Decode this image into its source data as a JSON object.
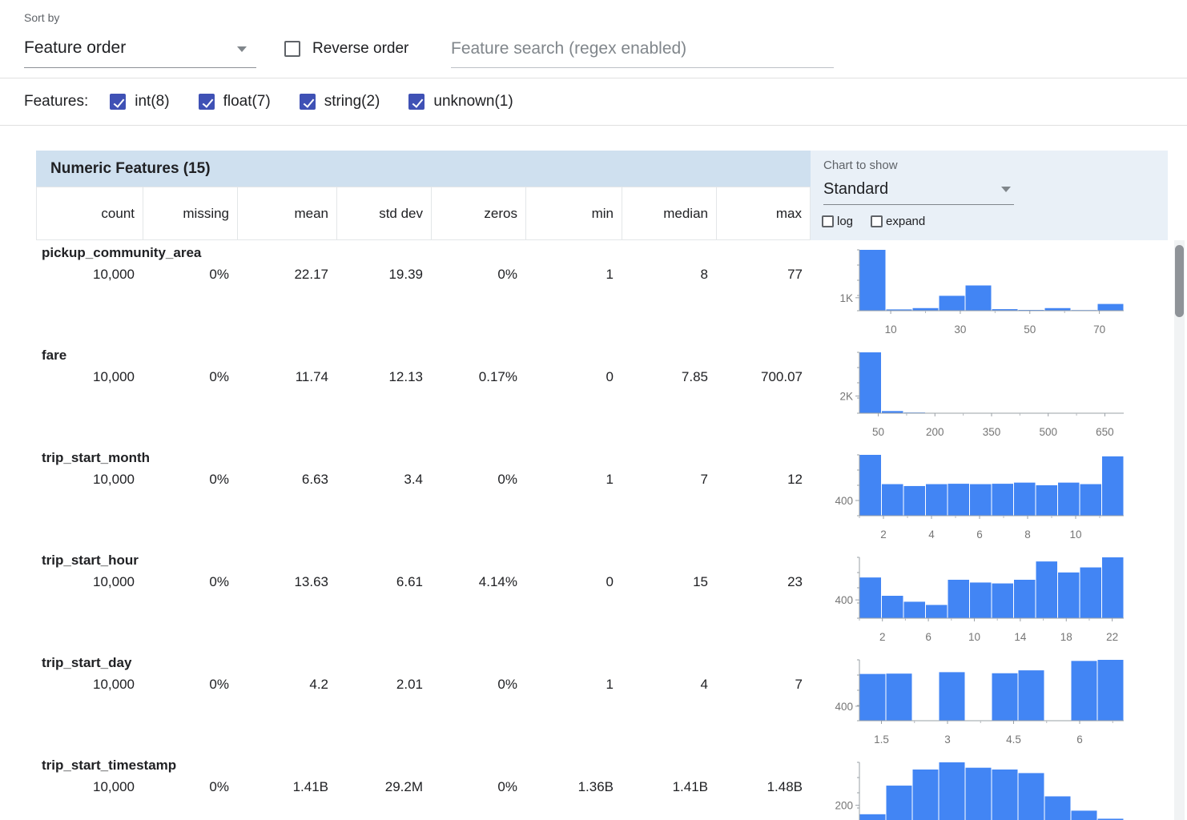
{
  "toolbar": {
    "sort_by_label": "Sort by",
    "sort_by_value": "Feature order",
    "reverse_order_label": "Reverse order",
    "reverse_order_checked": false,
    "search_placeholder": "Feature search (regex enabled)",
    "search_value": ""
  },
  "features_filter": {
    "label": "Features:",
    "options": [
      {
        "label": "int(8)",
        "checked": true
      },
      {
        "label": "float(7)",
        "checked": true
      },
      {
        "label": "string(2)",
        "checked": true
      },
      {
        "label": "unknown(1)",
        "checked": true
      }
    ]
  },
  "table": {
    "title": "Numeric Features (15)",
    "columns": [
      "count",
      "missing",
      "mean",
      "std dev",
      "zeros",
      "min",
      "median",
      "max"
    ],
    "chart_controls": {
      "label": "Chart to show",
      "selected": "Standard",
      "log_label": "log",
      "log_checked": false,
      "expand_label": "expand",
      "expand_checked": false
    },
    "rows": [
      {
        "name": "pickup_community_area",
        "count": "10,000",
        "missing": "0%",
        "mean": "22.17",
        "std_dev": "19.39",
        "zeros": "0%",
        "min": "1",
        "median": "8",
        "max": "77"
      },
      {
        "name": "fare",
        "count": "10,000",
        "missing": "0%",
        "mean": "11.74",
        "std_dev": "12.13",
        "zeros": "0.17%",
        "min": "0",
        "median": "7.85",
        "max": "700.07"
      },
      {
        "name": "trip_start_month",
        "count": "10,000",
        "missing": "0%",
        "mean": "6.63",
        "std_dev": "3.4",
        "zeros": "0%",
        "min": "1",
        "median": "7",
        "max": "12"
      },
      {
        "name": "trip_start_hour",
        "count": "10,000",
        "missing": "0%",
        "mean": "13.63",
        "std_dev": "6.61",
        "zeros": "4.14%",
        "min": "0",
        "median": "15",
        "max": "23"
      },
      {
        "name": "trip_start_day",
        "count": "10,000",
        "missing": "0%",
        "mean": "4.2",
        "std_dev": "2.01",
        "zeros": "0%",
        "min": "1",
        "median": "4",
        "max": "7"
      },
      {
        "name": "trip_start_timestamp",
        "count": "10,000",
        "missing": "0%",
        "mean": "1.41B",
        "std_dev": "29.2M",
        "zeros": "0%",
        "min": "1.36B",
        "median": "1.41B",
        "max": "1.48B"
      }
    ]
  },
  "colors": {
    "bar": "#4285f4",
    "checkbox_accent": "#3f51b5",
    "header_bg": "#cfe0ef",
    "panel_bg": "#e9f0f7",
    "axis": "#9aa0a6",
    "tick_text": "#757575"
  },
  "chart_data": [
    {
      "type": "bar",
      "feature": "pickup_community_area",
      "x_min": 1,
      "x_max": 77,
      "x_tick_values": [
        10,
        30,
        50,
        70
      ],
      "x_tick_labels": [
        "10",
        "30",
        "50",
        "70"
      ],
      "y_tick": {
        "value": 1000,
        "label": "1K"
      },
      "values": [
        4700,
        100,
        200,
        1150,
        1950,
        120,
        60,
        200,
        50,
        520
      ]
    },
    {
      "type": "bar",
      "feature": "fare",
      "x_min": 0,
      "x_max": 700,
      "x_tick_values": [
        50,
        200,
        350,
        500,
        650
      ],
      "x_tick_labels": [
        "50",
        "200",
        "350",
        "500",
        "650"
      ],
      "y_tick": {
        "value": 2000,
        "label": "2K"
      },
      "values": [
        7100,
        250,
        80,
        40,
        25,
        15,
        10,
        8,
        5,
        4,
        3,
        10
      ]
    },
    {
      "type": "bar",
      "feature": "trip_start_month",
      "x_min": 1,
      "x_max": 12,
      "x_tick_values": [
        2,
        4,
        6,
        8,
        10
      ],
      "x_tick_labels": [
        "2",
        "4",
        "6",
        "8",
        "10"
      ],
      "y_tick": {
        "value": 400,
        "label": "400"
      },
      "values": [
        1600,
        830,
        780,
        830,
        840,
        830,
        840,
        870,
        800,
        870,
        830,
        1560
      ]
    },
    {
      "type": "bar",
      "feature": "trip_start_hour",
      "x_min": 0,
      "x_max": 23,
      "x_tick_values": [
        2,
        6,
        10,
        14,
        18,
        22
      ],
      "x_tick_labels": [
        "2",
        "6",
        "10",
        "14",
        "18",
        "22"
      ],
      "y_tick": {
        "value": 400,
        "label": "400"
      },
      "values": [
        890,
        490,
        360,
        290,
        840,
        780,
        760,
        840,
        1240,
        1000,
        1110,
        1330
      ]
    },
    {
      "type": "bar",
      "feature": "trip_start_day",
      "x_min": 1,
      "x_max": 7,
      "x_tick_values": [
        1.5,
        3,
        4.5,
        6
      ],
      "x_tick_labels": [
        "1.5",
        "3",
        "4.5",
        "6"
      ],
      "y_tick": {
        "value": 400,
        "label": "400"
      },
      "values": [
        1290,
        1300,
        0,
        1340,
        0,
        1310,
        1390,
        0,
        1650,
        1680
      ]
    },
    {
      "type": "bar",
      "feature": "trip_start_timestamp",
      "x_min": 0,
      "x_max": 10,
      "x_tick_values": [],
      "x_tick_labels": [],
      "y_tick": {
        "value": 200,
        "label": "200"
      },
      "values": [
        100,
        420,
        600,
        680,
        620,
        600,
        560,
        300,
        140,
        50
      ]
    }
  ]
}
